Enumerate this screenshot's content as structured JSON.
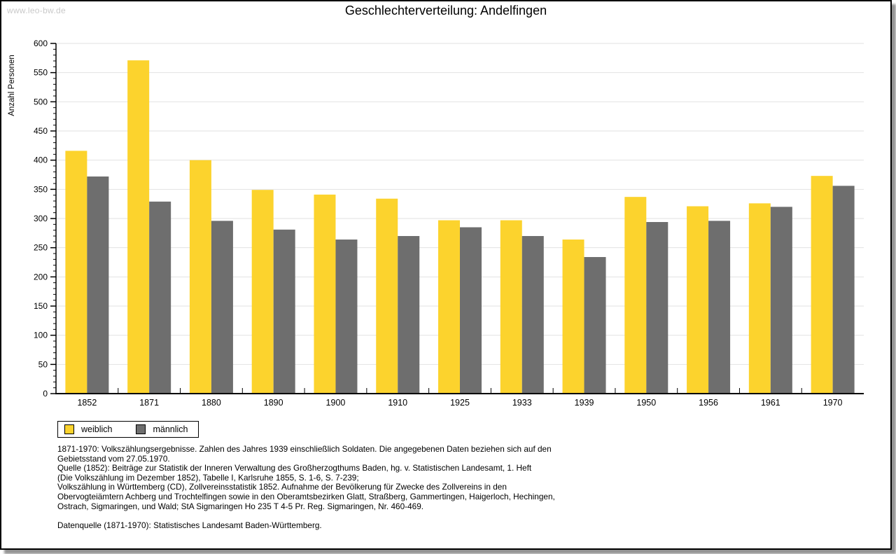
{
  "watermark": "www.leo-bw.de",
  "chart_data": {
    "type": "bar",
    "title": "Geschlechterverteilung: Andelfingen",
    "ylabel": "Anzahl Personen",
    "xlabel": "",
    "categories": [
      "1852",
      "1871",
      "1880",
      "1890",
      "1900",
      "1910",
      "1925",
      "1933",
      "1939",
      "1950",
      "1956",
      "1961",
      "1970"
    ],
    "series": [
      {
        "name": "weiblich",
        "color": "#fcd32d",
        "values": [
          416,
          571,
          400,
          349,
          341,
          334,
          297,
          297,
          264,
          337,
          321,
          326,
          373
        ]
      },
      {
        "name": "männlich",
        "color": "#6e6e6e",
        "values": [
          372,
          329,
          296,
          281,
          264,
          270,
          285,
          270,
          234,
          294,
          296,
          320,
          356
        ]
      }
    ],
    "ylim": [
      0,
      600
    ],
    "yticks": [
      0,
      50,
      100,
      150,
      200,
      250,
      300,
      350,
      400,
      450,
      500,
      550,
      600
    ],
    "ytick_minor_step": 10,
    "grid": true,
    "legend_position": "bottom-left"
  },
  "footnotes": {
    "lines": [
      "1871-1970: Volkszählungsergebnisse. Zahlen des Jahres 1939 einschließlich Soldaten. Die angegebenen Daten beziehen sich auf den",
      "Gebietsstand vom 27.05.1970.",
      "Quelle (1852): Beiträge zur Statistik der Inneren Verwaltung des Großherzogthums Baden, hg. v. Statistischen Landesamt, 1. Heft",
      "(Die Volkszählung im Dezember 1852), Tabelle I, Karlsruhe 1855, S. 1-6, S. 7-239;",
      "Volkszählung in Württemberg (CD), Zollvereinsstatistik 1852. Aufnahme der Bevölkerung für Zwecke des Zollvereins in den",
      "Obervogteiämtern Achberg und Trochtelfingen sowie in den Oberamtsbezirken Glatt, Straßberg, Gammertingen, Haigerloch, Hechingen,",
      "Ostrach, Sigmaringen, und Wald; StA Sigmaringen Ho 235 T 4-5 Pr. Reg. Sigmaringen, Nr. 460-469.",
      "Datenquelle (1871-1970): Statistisches Landesamt Baden-Württemberg."
    ]
  },
  "colors": {
    "grid": "#e2e2e2",
    "axis": "#000000",
    "watermark": "#c9c9c9",
    "border": "#000000",
    "shadow": "#949494"
  }
}
